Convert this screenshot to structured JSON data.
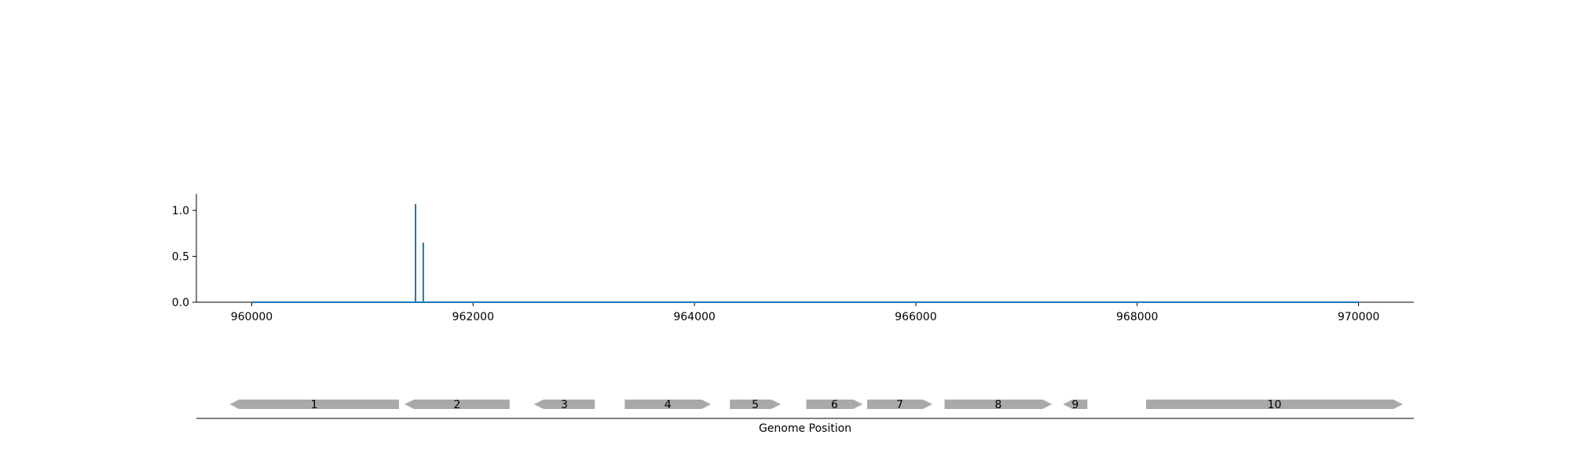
{
  "chart_data": [
    {
      "type": "line",
      "title": "",
      "xlabel": "",
      "ylabel": "",
      "xlim": [
        959500,
        970500
      ],
      "ylim": [
        0,
        1.18
      ],
      "xticks": [
        960000,
        962000,
        964000,
        966000,
        968000,
        970000
      ],
      "xtick_labels": [
        "960000",
        "962000",
        "964000",
        "966000",
        "968000",
        "970000"
      ],
      "yticks": [
        0.0,
        0.5,
        1.0
      ],
      "ytick_labels": [
        "0.0",
        "0.5",
        "1.0"
      ],
      "grid": false,
      "line_color": "#1f77b4",
      "baseline": {
        "x_start": 960000,
        "x_end": 970000,
        "y": 0
      },
      "spikes": [
        {
          "x": 961480,
          "y": 1.07
        },
        {
          "x": 961550,
          "y": 0.65
        }
      ]
    },
    {
      "type": "gene-track",
      "xlabel": "Genome Position",
      "xlim": [
        959500,
        970500
      ],
      "feature_color": "#a9a9a9",
      "genes": [
        {
          "label": "1",
          "start": 959800,
          "end": 961330,
          "strand": "-"
        },
        {
          "label": "2",
          "start": 961380,
          "end": 962330,
          "strand": "-"
        },
        {
          "label": "3",
          "start": 962550,
          "end": 963100,
          "strand": "-"
        },
        {
          "label": "4",
          "start": 963370,
          "end": 964150,
          "strand": "+"
        },
        {
          "label": "5",
          "start": 964320,
          "end": 964780,
          "strand": "+"
        },
        {
          "label": "6",
          "start": 965010,
          "end": 965520,
          "strand": "+"
        },
        {
          "label": "7",
          "start": 965560,
          "end": 966150,
          "strand": "+"
        },
        {
          "label": "8",
          "start": 966260,
          "end": 967230,
          "strand": "+"
        },
        {
          "label": "9",
          "start": 967330,
          "end": 967550,
          "strand": "-"
        },
        {
          "label": "10",
          "start": 968080,
          "end": 970400,
          "strand": "+"
        }
      ]
    }
  ]
}
